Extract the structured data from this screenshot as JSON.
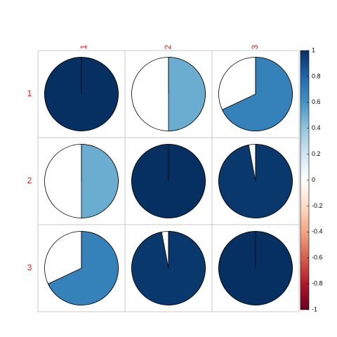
{
  "chart_data": {
    "type": "heatmap",
    "subtype": "correlation-pie",
    "row_labels": [
      "1",
      "2",
      "3"
    ],
    "col_labels": [
      "1",
      "2",
      "3"
    ],
    "matrix": [
      [
        1.0,
        0.5,
        0.68
      ],
      [
        0.5,
        1.0,
        0.97
      ],
      [
        0.68,
        0.97,
        1.0
      ]
    ],
    "label_color": "#e41a1c",
    "grid_color": "#c8c8c8",
    "pie_border_color": "#000000",
    "colorbar": {
      "ticks": [
        "1",
        "0.8",
        "0.6",
        "0.4",
        "0.2",
        "0",
        "-0.2",
        "-0.4",
        "-0.6",
        "-0.8",
        "-1"
      ],
      "range": [
        -1,
        1
      ],
      "colors": [
        "#67001f",
        "#b2182b",
        "#d6604d",
        "#f4a582",
        "#fddbc7",
        "#ffffff",
        "#d1e5f0",
        "#92c5de",
        "#4393c3",
        "#2166ac",
        "#053061"
      ]
    }
  }
}
